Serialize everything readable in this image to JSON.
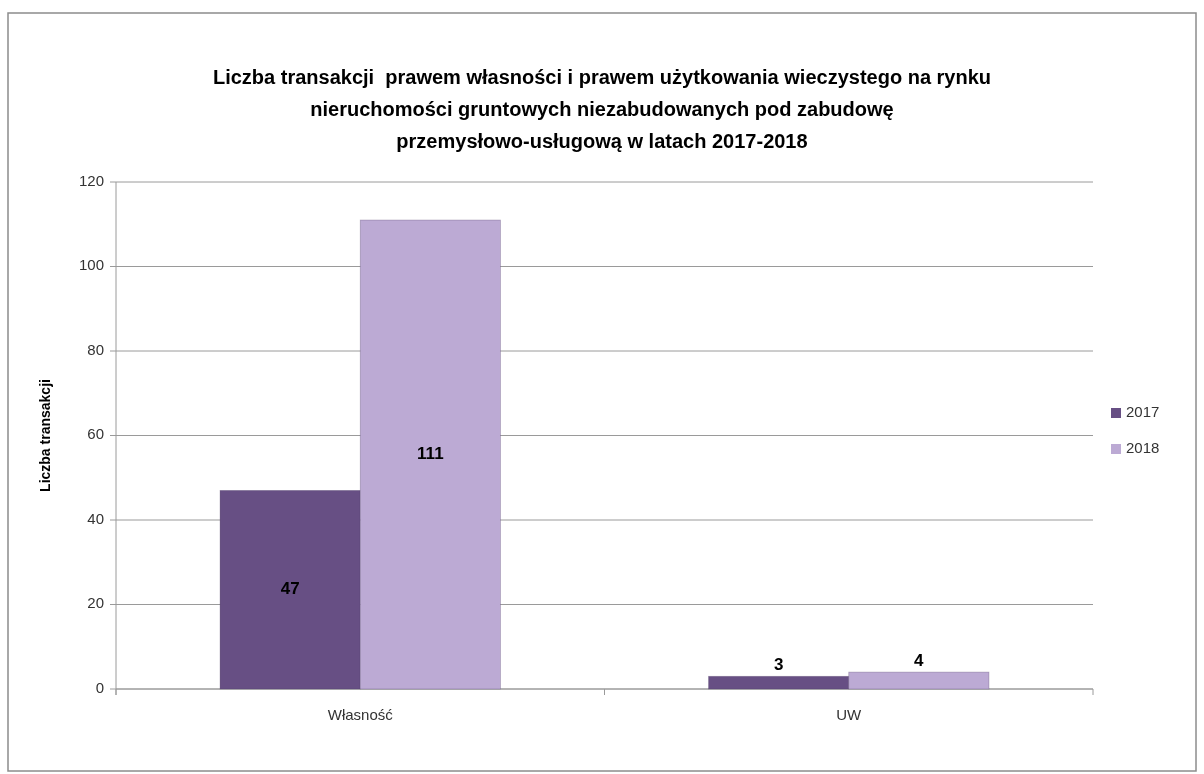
{
  "chart_data": {
    "type": "bar",
    "title": "Liczba transakcji  prawem własności i prawem użytkowania wieczystego na rynku nieruchomości gruntowych niezabudowanych pod zabudowę przemysłowo-usługową w latach 2017-2018",
    "ylabel": "Liczba transakcji",
    "categories": [
      "Własność",
      "UW"
    ],
    "series": [
      {
        "name": "2017",
        "color": "#674f84",
        "values": [
          47,
          3
        ]
      },
      {
        "name": "2018",
        "color": "#bcaad4",
        "values": [
          111,
          4
        ]
      }
    ],
    "ylim": [
      0,
      120
    ],
    "yticks": [
      0,
      20,
      40,
      60,
      80,
      100,
      120
    ],
    "grid": "y",
    "legend": "right",
    "data_labels": true
  }
}
